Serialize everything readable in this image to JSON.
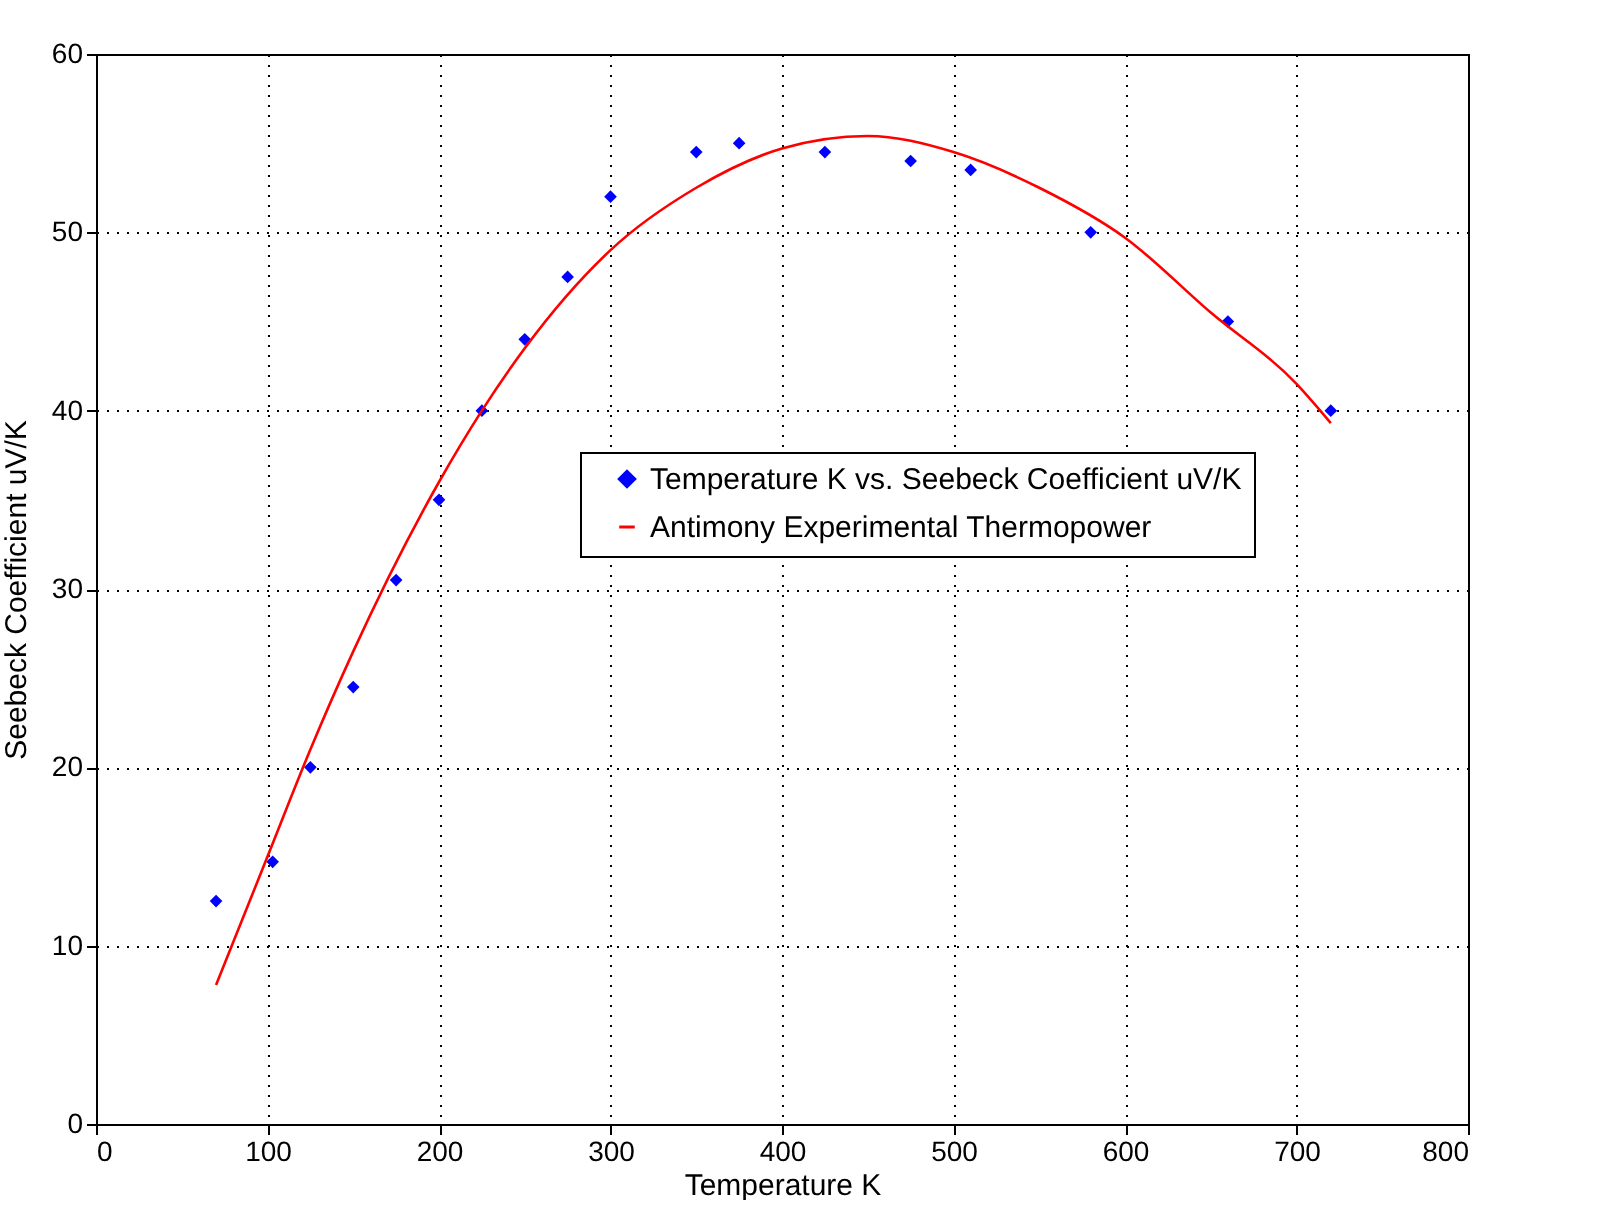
{
  "chart_data": {
    "type": "scatter",
    "xlabel": "Temperature K",
    "ylabel": "Seebeck Coefficient uV/K",
    "xlim": [
      0,
      800
    ],
    "xticks": [
      0,
      100,
      200,
      300,
      400,
      500,
      600,
      700,
      800
    ],
    "ylim": [
      0,
      60
    ],
    "yticks": [
      0,
      10,
      20,
      30,
      40,
      50,
      60
    ],
    "grid": true,
    "legend": "right",
    "marker": "diamond",
    "line_style": "solid",
    "series": [
      {
        "name": "Temperature K vs. Seebeck Coefficient uV/K",
        "color": "#0000ff",
        "x": [
          70,
          103,
          125,
          150,
          175,
          200,
          225,
          250,
          275,
          300,
          350,
          375,
          425,
          475,
          510,
          580,
          660,
          720
        ],
        "values": [
          12.5,
          14.7,
          20,
          24.5,
          30.5,
          35,
          40,
          44,
          47.5,
          52,
          54.5,
          55,
          54.5,
          54,
          53.5,
          50,
          45,
          40
        ]
      },
      {
        "name": "Antimony Experimental Thermopower",
        "type": "line",
        "marker": "none",
        "color": "#ff0000",
        "x": [
          70,
          100,
          125,
          150,
          200,
          225,
          250,
          300,
          350,
          400,
          450,
          500,
          550,
          600,
          650,
          700,
          720
        ],
        "values": [
          7.8,
          15,
          21,
          26.5,
          36,
          40,
          43.5,
          49,
          52.5,
          54.7,
          55.4,
          54.5,
          52.5,
          49.7,
          45.5,
          41.5,
          39.3
        ]
      }
    ]
  }
}
